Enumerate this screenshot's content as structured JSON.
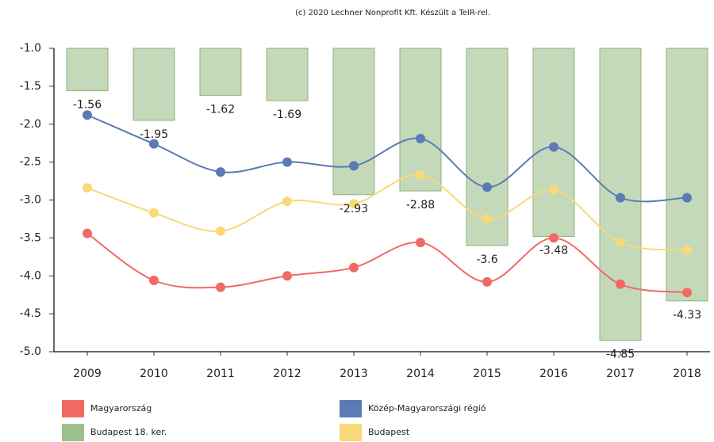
{
  "chart_data": {
    "type": "bar-line",
    "title": "(c) 2020 Lechner Nonprofit Kft. Készült a TeIR-rel.",
    "categories": [
      "2009",
      "2010",
      "2011",
      "2012",
      "2013",
      "2014",
      "2015",
      "2016",
      "2017",
      "2018"
    ],
    "ylim": [
      -5,
      -1
    ],
    "yticks": [
      {
        "value": -1,
        "label": "-1.0"
      },
      -1.5,
      {
        "value": -2,
        "label": "-2.0"
      },
      -2.5,
      {
        "value": -3,
        "label": "-3.0"
      },
      -3.5,
      {
        "value": -4,
        "label": "-4.0"
      },
      -4.5,
      {
        "value": -5,
        "label": "-5.0"
      }
    ],
    "grid": false,
    "series": [
      {
        "name": "Magyarország",
        "color": "#f06a63",
        "kind": "line",
        "values": [
          -3.44,
          -4.06,
          -4.15,
          -4.0,
          -3.89,
          -3.56,
          -4.08,
          -3.5,
          -4.11,
          -4.22
        ]
      },
      {
        "name": "Közép-Magyarországi régió",
        "color": "#5b7bb6",
        "kind": "line",
        "values": [
          -1.88,
          -2.26,
          -2.63,
          -2.5,
          -2.55,
          -2.19,
          -2.83,
          -2.3,
          -2.97,
          -2.97
        ]
      },
      {
        "name": "Budapest 18. ker.",
        "color": "#9cc08c",
        "kind": "bar",
        "values": [
          -1.56,
          -1.95,
          -1.62,
          -1.69,
          -2.93,
          -2.88,
          -3.6,
          -3.48,
          -4.85,
          -4.33
        ]
      },
      {
        "name": "Budapest",
        "color": "#f8d979",
        "kind": "line",
        "values": [
          -2.84,
          -3.17,
          -3.41,
          -3.02,
          -3.05,
          -2.67,
          -3.25,
          -2.87,
          -3.56,
          -3.66
        ]
      }
    ]
  }
}
